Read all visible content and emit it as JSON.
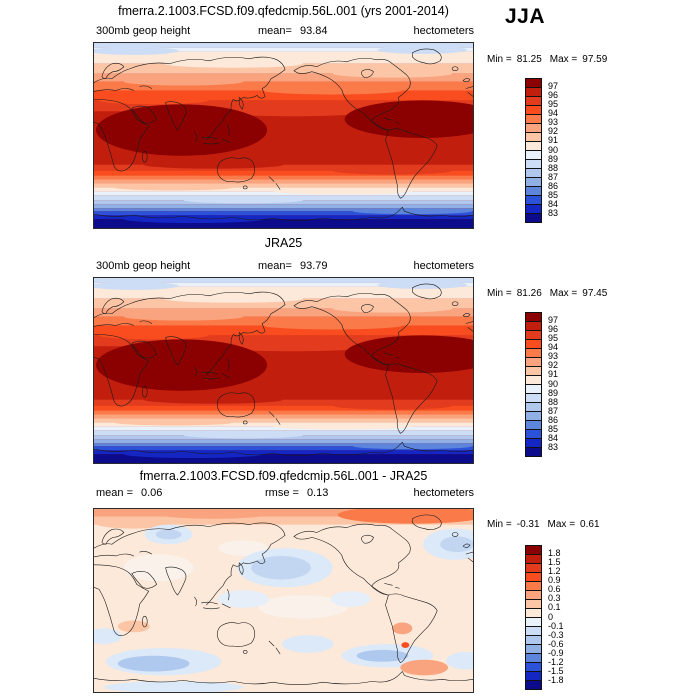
{
  "header": {
    "title": "fmerra.2.1003.FCSD.f09.qfedcmip.56L.001 (yrs 2001-2014)",
    "season": "JJA"
  },
  "panels": {
    "model": {
      "field": "300mb geop height",
      "mean_label": "mean=",
      "mean": "93.84",
      "units": "hectometers",
      "min_label": "Min =",
      "min": "81.25",
      "max_label": "Max =",
      "max": "97.59"
    },
    "reference": {
      "title": "JRA25",
      "field": "300mb geop height",
      "mean_label": "mean=",
      "mean": "93.79",
      "units": "hectometers",
      "min_label": "Min =",
      "min": "81.26",
      "max_label": "Max =",
      "max": "97.45"
    },
    "difference": {
      "title": "fmerra.2.1003.FCSD.f09.qfedcmip.56L.001 - JRA25",
      "mean_label": "mean =",
      "mean": "0.06",
      "rmse_label": "rmse =",
      "rmse": "0.13",
      "units": "hectometers",
      "min_label": "Min =",
      "min": "-0.31",
      "max_label": "Max =",
      "max": "0.61"
    }
  },
  "colorbars": {
    "height": {
      "labels": [
        "97",
        "96",
        "95",
        "94",
        "93",
        "92",
        "91",
        "90",
        "89",
        "88",
        "87",
        "86",
        "85",
        "84",
        "83"
      ],
      "colors": [
        "#8b0000",
        "#c21e0e",
        "#e23b1e",
        "#f94d1f",
        "#fa7a4a",
        "#faa47f",
        "#fbc5a6",
        "#fce9d9",
        "#e9f1fb",
        "#cdddf5",
        "#b0c8ee",
        "#90b0e5",
        "#5e85dc",
        "#2b52d8",
        "#1427c4",
        "#0b0b8c"
      ]
    },
    "difference": {
      "labels": [
        "1.8",
        "1.5",
        "1.2",
        "0.9",
        "0.6",
        "0.3",
        "0.1",
        "0",
        "-0.1",
        "-0.3",
        "-0.6",
        "-0.9",
        "-1.2",
        "-1.5",
        "-1.8"
      ],
      "colors": [
        "#8b0000",
        "#c21e0e",
        "#e23b1e",
        "#f94d1f",
        "#fa7a4a",
        "#faa47f",
        "#fbc5a6",
        "#fce9d9",
        "#e9f1fb",
        "#cdddf5",
        "#b0c8ee",
        "#90b0e5",
        "#5e85dc",
        "#2b52d8",
        "#1427c4",
        "#0b0b8c"
      ]
    }
  },
  "chart_data": [
    {
      "type": "heatmap",
      "panel": "model",
      "title": "fmerra.2.1003.FCSD.f09.qfedcmip.56L.001 (yrs 2001-2014)",
      "field": "300mb geop height",
      "season": "JJA",
      "units": "hectometers",
      "mean": 93.84,
      "min": 81.25,
      "max": 97.59,
      "contour_levels": [
        83,
        84,
        85,
        86,
        87,
        88,
        89,
        90,
        91,
        92,
        93,
        94,
        95,
        96,
        97
      ],
      "projection": "global cylindrical equidistant, 0E at left edge, 90N at top",
      "pattern": "zonal bands: >97 hm subtropical cores over N Africa-S Asia and subtropical N Atlantic-Mexico near 25N; ~90-91 hm over Arctic; decreasing southward to ~83 hm over Antarctica"
    },
    {
      "type": "heatmap",
      "panel": "reference",
      "title": "JRA25",
      "field": "300mb geop height",
      "season": "JJA",
      "units": "hectometers",
      "mean": 93.79,
      "min": 81.26,
      "max": 97.45,
      "contour_levels": [
        83,
        84,
        85,
        86,
        87,
        88,
        89,
        90,
        91,
        92,
        93,
        94,
        95,
        96,
        97
      ],
      "projection": "global cylindrical equidistant, 0E at left edge, 90N at top",
      "pattern": "nearly identical zonal structure to model panel: dark-red subtropical maxima, deep blue Antarctic minimum"
    },
    {
      "type": "heatmap",
      "panel": "difference",
      "title": "fmerra.2.1003.FCSD.f09.qfedcmip.56L.001 - JRA25",
      "season": "JJA",
      "units": "hectometers",
      "mean": 0.06,
      "rmse": 0.13,
      "min": -0.31,
      "max": 0.61,
      "contour_levels": [
        -1.8,
        -1.5,
        -1.2,
        -0.9,
        -0.6,
        -0.3,
        -0.1,
        0,
        0.1,
        0.3,
        0.6,
        0.9,
        1.2,
        1.5,
        1.8
      ],
      "projection": "global cylindrical equidistant, 0E at left edge, 90N at top",
      "pattern": "mostly +0.1 to +0.3; +0.3 to +0.6 across Arctic/high northern latitudes; weak negative (-0.1 to -0.3) patches over eastern Europe, central North Pacific, North Atlantic and Southern Ocean"
    }
  ]
}
